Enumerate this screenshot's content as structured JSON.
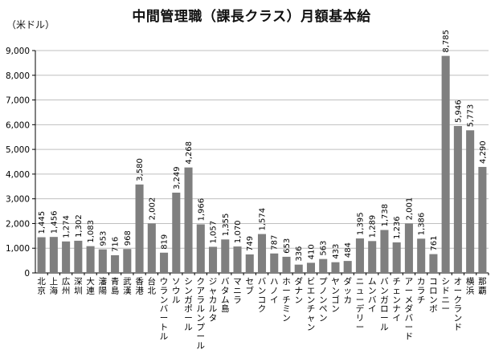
{
  "title": "中間管理職（課長クラス）月額基本給",
  "unit_label": "（米ドル）",
  "colors": {
    "bar": "#7f7f7f",
    "grid": "#bfbfbf",
    "axis": "#000000"
  },
  "chart_data": {
    "type": "bar",
    "title": "中間管理職（課長クラス）月額基本給",
    "ylabel": "（米ドル）",
    "xlabel": "",
    "ylim": [
      0,
      9000
    ],
    "yticks": [
      "0",
      "1,000",
      "2,000",
      "3,000",
      "4,000",
      "5,000",
      "6,000",
      "7,000",
      "8,000",
      "9,000"
    ],
    "grid": true,
    "legend": "none",
    "categories": [
      "北京",
      "上海",
      "広州",
      "深圳",
      "大連",
      "瀋陽",
      "青島",
      "武漢",
      "香港",
      "台北",
      "ウランバートル",
      "ソウル",
      "シンガポール",
      "クアラルンプール",
      "ジャカルタ",
      "バタム島",
      "マニラ",
      "セブ",
      "バンコク",
      "ハノイ",
      "ホーチミン",
      "ダナン",
      "ビエンチャン",
      "プノンペン",
      "ヤンゴン",
      "ダッカ",
      "ニューデリー",
      "ムンバイ",
      "バンガロール",
      "チェンナイ",
      "アーメダバード",
      "カラチ",
      "コロンボ",
      "シドニー",
      "オークランド",
      "横浜",
      "那覇"
    ],
    "values": [
      1445,
      1456,
      1274,
      1302,
      1083,
      953,
      716,
      968,
      3580,
      2002,
      819,
      3249,
      4268,
      1966,
      1057,
      1355,
      1070,
      749,
      1574,
      787,
      653,
      336,
      410,
      563,
      433,
      484,
      1395,
      1289,
      1738,
      1236,
      2001,
      1386,
      761,
      8785,
      5946,
      5773,
      4290
    ],
    "data_labels": [
      "1,445",
      "1,456",
      "1,274",
      "1,302",
      "1,083",
      "953",
      "716",
      "968",
      "3,580",
      "2,002",
      "819",
      "3,249",
      "4,268",
      "1,966",
      "1,057",
      "1,355",
      "1,070",
      "749",
      "1,574",
      "787",
      "653",
      "336",
      "410",
      "563",
      "433",
      "484",
      "1,395",
      "1,289",
      "1,738",
      "1,236",
      "2,001",
      "1,386",
      "761",
      "8,785",
      "5,946",
      "5,773",
      "4,290"
    ]
  }
}
